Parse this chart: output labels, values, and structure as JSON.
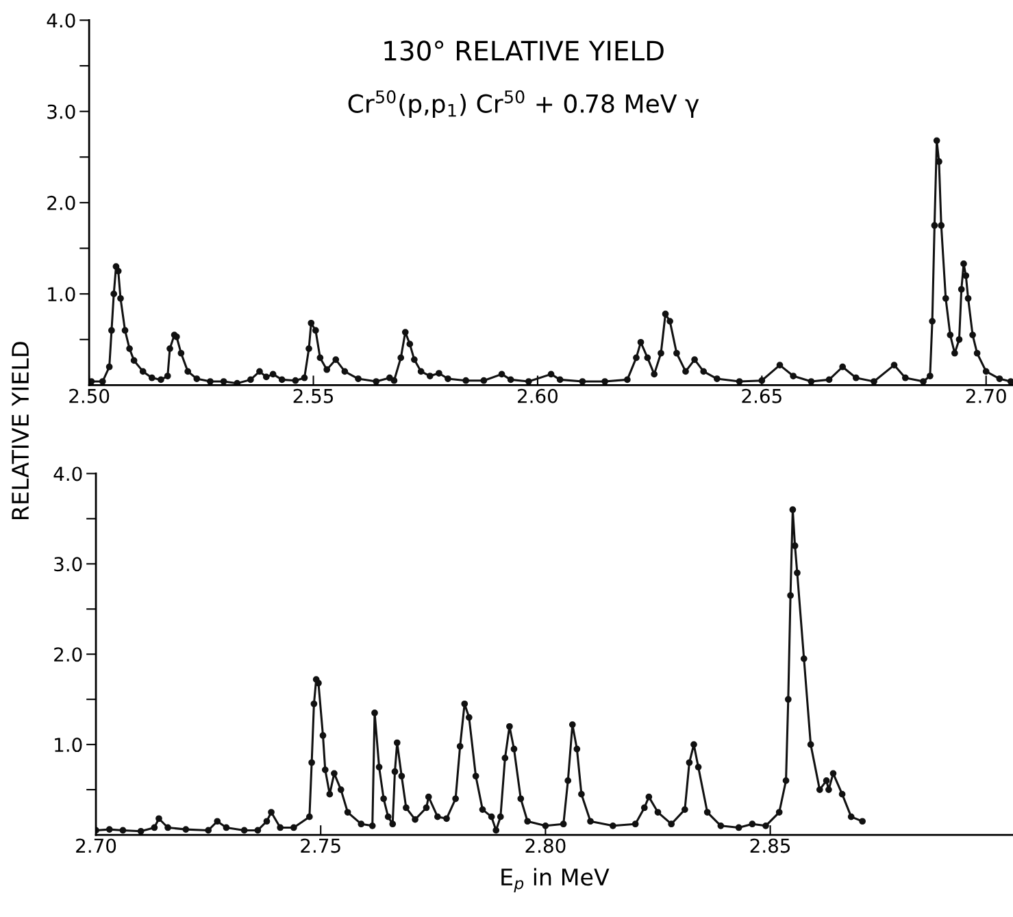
{
  "chart_data": [
    {
      "type": "line",
      "title": "130° RELATIVE YIELD",
      "subtitle": "Cr$^{50}$(p,p$_{1}$) Cr$^{50}$ + 0.78 MeV γ",
      "ylabel": "RELATIVE YIELD",
      "marker": "circle",
      "line_style": "solid",
      "grid": false,
      "legend": false,
      "xlim": [
        2.5,
        2.706
      ],
      "xticks": [
        {
          "value": 2.5,
          "label": "2.50"
        },
        {
          "value": 2.55,
          "label": "2.55"
        },
        {
          "value": 2.6,
          "label": "2.60"
        },
        {
          "value": 2.65,
          "label": "2.65"
        },
        {
          "value": 2.7,
          "label": "2.70"
        }
      ],
      "ylim": [
        0,
        4
      ],
      "yticks": [
        {
          "value": 0.5,
          "label": null
        },
        {
          "value": 1,
          "label": "1.0"
        },
        {
          "value": 1.5,
          "label": null
        },
        {
          "value": 2,
          "label": "2.0"
        },
        {
          "value": 2.5,
          "label": null
        },
        {
          "value": 3,
          "label": "3.0"
        },
        {
          "value": 3.5,
          "label": null
        },
        {
          "value": 4,
          "label": "4.0"
        }
      ],
      "series": [
        {
          "color": "#111111",
          "x": [
            2.5005,
            2.503,
            2.5045,
            2.505,
            2.5055,
            2.506,
            2.5065,
            2.507,
            2.508,
            2.509,
            2.51,
            2.512,
            2.514,
            2.516,
            2.5175,
            2.518,
            2.519,
            2.5195,
            2.5205,
            2.522,
            2.524,
            2.527,
            2.53,
            2.533,
            2.536,
            2.538,
            2.5395,
            2.541,
            2.543,
            2.546,
            2.548,
            2.549,
            2.5495,
            2.5505,
            2.5515,
            2.553,
            2.555,
            2.557,
            2.56,
            2.564,
            2.567,
            2.568,
            2.5695,
            2.5705,
            2.5715,
            2.5725,
            2.574,
            2.576,
            2.578,
            2.58,
            2.584,
            2.588,
            2.592,
            2.594,
            2.598,
            2.603,
            2.605,
            2.61,
            2.615,
            2.62,
            2.622,
            2.623,
            2.6245,
            2.626,
            2.6275,
            2.6285,
            2.6295,
            2.631,
            2.633,
            2.635,
            2.637,
            2.64,
            2.645,
            2.65,
            2.654,
            2.657,
            2.661,
            2.665,
            2.668,
            2.671,
            2.675,
            2.6795,
            2.682,
            2.686,
            2.6875,
            2.688,
            2.6885,
            2.689,
            2.6895,
            2.69,
            2.691,
            2.692,
            2.693,
            2.694,
            2.6945,
            2.695,
            2.6955,
            2.696,
            2.697,
            2.698,
            2.7,
            2.703,
            2.7055
          ],
          "values": [
            0.04,
            0.04,
            0.2,
            0.6,
            1.0,
            1.3,
            1.25,
            0.95,
            0.6,
            0.4,
            0.27,
            0.15,
            0.08,
            0.06,
            0.1,
            0.4,
            0.55,
            0.53,
            0.35,
            0.15,
            0.07,
            0.04,
            0.04,
            0.02,
            0.06,
            0.15,
            0.09,
            0.12,
            0.06,
            0.05,
            0.08,
            0.4,
            0.68,
            0.6,
            0.3,
            0.17,
            0.28,
            0.15,
            0.07,
            0.04,
            0.08,
            0.05,
            0.3,
            0.58,
            0.45,
            0.28,
            0.15,
            0.1,
            0.13,
            0.07,
            0.05,
            0.05,
            0.12,
            0.06,
            0.04,
            0.12,
            0.06,
            0.04,
            0.04,
            0.06,
            0.3,
            0.47,
            0.3,
            0.12,
            0.35,
            0.78,
            0.7,
            0.35,
            0.15,
            0.28,
            0.15,
            0.07,
            0.04,
            0.05,
            0.22,
            0.1,
            0.04,
            0.06,
            0.2,
            0.08,
            0.04,
            0.22,
            0.08,
            0.04,
            0.1,
            0.7,
            1.75,
            2.68,
            2.45,
            1.75,
            0.95,
            0.55,
            0.35,
            0.5,
            1.05,
            1.33,
            1.2,
            0.95,
            0.55,
            0.35,
            0.15,
            0.07,
            0.04
          ]
        }
      ]
    },
    {
      "type": "line",
      "xlabel": "E$_{p}$ in MeV",
      "marker": "circle",
      "line_style": "solid",
      "grid": false,
      "legend": false,
      "xlim": [
        2.7,
        2.904
      ],
      "xticks": [
        {
          "value": 2.7,
          "label": "2.70"
        },
        {
          "value": 2.75,
          "label": "2.75"
        },
        {
          "value": 2.8,
          "label": "2.80"
        },
        {
          "value": 2.85,
          "label": "2.85"
        }
      ],
      "ylim": [
        0,
        4
      ],
      "yticks": [
        {
          "value": 0.5,
          "label": null
        },
        {
          "value": 1,
          "label": "1.0"
        },
        {
          "value": 1.5,
          "label": null
        },
        {
          "value": 2,
          "label": "2.0"
        },
        {
          "value": 2.5,
          "label": null
        },
        {
          "value": 3,
          "label": "3.0"
        },
        {
          "value": 3.5,
          "label": null
        },
        {
          "value": 4,
          "label": "4.0"
        }
      ],
      "series": [
        {
          "color": "#111111",
          "x": [
            2.7,
            2.703,
            2.706,
            2.71,
            2.713,
            2.714,
            2.716,
            2.72,
            2.725,
            2.727,
            2.729,
            2.733,
            2.736,
            2.738,
            2.739,
            2.741,
            2.744,
            2.7475,
            2.748,
            2.7485,
            2.749,
            2.7495,
            2.7505,
            2.751,
            2.752,
            2.753,
            2.7545,
            2.756,
            2.759,
            2.7615,
            2.762,
            2.763,
            2.764,
            2.765,
            2.766,
            2.7665,
            2.767,
            2.768,
            2.769,
            2.771,
            2.7735,
            2.774,
            2.776,
            2.778,
            2.78,
            2.781,
            2.782,
            2.783,
            2.7845,
            2.786,
            2.788,
            2.789,
            2.79,
            2.791,
            2.792,
            2.793,
            2.7945,
            2.796,
            2.8,
            2.804,
            2.805,
            2.806,
            2.807,
            2.808,
            2.81,
            2.815,
            2.82,
            2.822,
            2.823,
            2.825,
            2.828,
            2.831,
            2.832,
            2.833,
            2.834,
            2.836,
            2.839,
            2.843,
            2.846,
            2.849,
            2.852,
            2.8535,
            2.854,
            2.8545,
            2.855,
            2.8555,
            2.856,
            2.8575,
            2.859,
            2.861,
            2.8625,
            2.863,
            2.864,
            2.866,
            2.868,
            2.8705
          ],
          "values": [
            0.05,
            0.06,
            0.05,
            0.04,
            0.08,
            0.18,
            0.08,
            0.06,
            0.05,
            0.15,
            0.08,
            0.05,
            0.05,
            0.15,
            0.25,
            0.08,
            0.08,
            0.2,
            0.8,
            1.45,
            1.72,
            1.68,
            1.1,
            0.72,
            0.45,
            0.68,
            0.5,
            0.25,
            0.12,
            0.1,
            1.35,
            0.75,
            0.4,
            0.2,
            0.12,
            0.7,
            1.02,
            0.65,
            0.3,
            0.17,
            0.3,
            0.42,
            0.2,
            0.18,
            0.4,
            0.98,
            1.45,
            1.3,
            0.65,
            0.28,
            0.2,
            0.05,
            0.2,
            0.85,
            1.2,
            0.95,
            0.4,
            0.15,
            0.1,
            0.12,
            0.6,
            1.22,
            0.95,
            0.45,
            0.15,
            0.1,
            0.12,
            0.3,
            0.42,
            0.25,
            0.12,
            0.28,
            0.8,
            1.0,
            0.75,
            0.25,
            0.1,
            0.08,
            0.12,
            0.1,
            0.25,
            0.6,
            1.5,
            2.65,
            3.6,
            3.2,
            2.9,
            1.95,
            1.0,
            0.5,
            0.6,
            0.5,
            0.68,
            0.45,
            0.2,
            0.15
          ]
        }
      ]
    }
  ]
}
